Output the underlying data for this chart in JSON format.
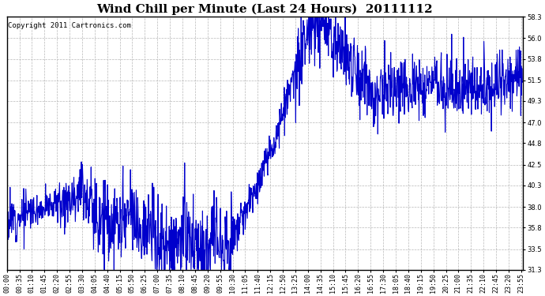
{
  "title": "Wind Chill per Minute (Last 24 Hours)  20111112",
  "copyright": "Copyright 2011 Cartronics.com",
  "ylim": [
    31.3,
    58.3
  ],
  "yticks": [
    31.3,
    33.5,
    35.8,
    38.0,
    40.3,
    42.5,
    44.8,
    47.0,
    49.3,
    51.5,
    53.8,
    56.0,
    58.3
  ],
  "line_color": "#0000cc",
  "bg_color": "#ffffff",
  "grid_color": "#b0b0b0",
  "title_fontsize": 11,
  "copyright_fontsize": 6.5,
  "tick_fontsize": 6,
  "n_minutes": 1440,
  "x_tick_interval": 35,
  "x_tick_labels": [
    "00:00",
    "00:35",
    "01:10",
    "01:45",
    "02:20",
    "02:55",
    "03:30",
    "04:05",
    "04:40",
    "05:15",
    "05:50",
    "06:25",
    "07:00",
    "07:35",
    "08:10",
    "08:45",
    "09:20",
    "09:55",
    "10:30",
    "11:05",
    "11:40",
    "12:15",
    "12:50",
    "13:25",
    "14:00",
    "14:35",
    "15:10",
    "15:45",
    "16:20",
    "16:55",
    "17:30",
    "18:05",
    "18:40",
    "19:15",
    "19:50",
    "20:25",
    "21:00",
    "21:35",
    "22:10",
    "22:45",
    "23:20",
    "23:55"
  ],
  "segments": [
    {
      "t0": 0.0,
      "t1": 0.042,
      "v0": 36.5,
      "v1": 37.5
    },
    {
      "t0": 0.042,
      "t1": 0.104,
      "v0": 37.5,
      "v1": 38.5
    },
    {
      "t0": 0.104,
      "t1": 0.146,
      "v0": 38.5,
      "v1": 40.2
    },
    {
      "t0": 0.146,
      "t1": 0.16,
      "v0": 40.2,
      "v1": 38.5
    },
    {
      "t0": 0.16,
      "t1": 0.208,
      "v0": 38.5,
      "v1": 35.5
    },
    {
      "t0": 0.208,
      "t1": 0.24,
      "v0": 35.5,
      "v1": 36.5
    },
    {
      "t0": 0.24,
      "t1": 0.271,
      "v0": 36.5,
      "v1": 35.8
    },
    {
      "t0": 0.271,
      "t1": 0.313,
      "v0": 35.8,
      "v1": 33.5
    },
    {
      "t0": 0.313,
      "t1": 0.35,
      "v0": 33.5,
      "v1": 35.0
    },
    {
      "t0": 0.35,
      "t1": 0.375,
      "v0": 35.0,
      "v1": 32.5
    },
    {
      "t0": 0.375,
      "t1": 0.406,
      "v0": 32.5,
      "v1": 35.5
    },
    {
      "t0": 0.406,
      "t1": 0.43,
      "v0": 35.5,
      "v1": 33.5
    },
    {
      "t0": 0.43,
      "t1": 0.5,
      "v0": 33.5,
      "v1": 42.0
    },
    {
      "t0": 0.5,
      "t1": 0.56,
      "v0": 42.0,
      "v1": 52.0
    },
    {
      "t0": 0.56,
      "t1": 0.59,
      "v0": 52.0,
      "v1": 57.5
    },
    {
      "t0": 0.59,
      "t1": 0.615,
      "v0": 57.5,
      "v1": 57.0
    },
    {
      "t0": 0.615,
      "t1": 0.64,
      "v0": 57.0,
      "v1": 55.5
    },
    {
      "t0": 0.64,
      "t1": 0.667,
      "v0": 55.5,
      "v1": 53.5
    },
    {
      "t0": 0.667,
      "t1": 0.693,
      "v0": 53.5,
      "v1": 51.5
    },
    {
      "t0": 0.693,
      "t1": 0.715,
      "v0": 51.5,
      "v1": 50.0
    },
    {
      "t0": 0.715,
      "t1": 0.76,
      "v0": 50.0,
      "v1": 50.5
    },
    {
      "t0": 0.76,
      "t1": 0.82,
      "v0": 50.5,
      "v1": 51.5
    },
    {
      "t0": 0.82,
      "t1": 0.87,
      "v0": 51.5,
      "v1": 51.0
    },
    {
      "t0": 0.87,
      "t1": 0.917,
      "v0": 51.0,
      "v1": 50.5
    },
    {
      "t0": 0.917,
      "t1": 0.96,
      "v0": 50.5,
      "v1": 51.5
    },
    {
      "t0": 0.96,
      "t1": 1.0,
      "v0": 51.5,
      "v1": 52.5
    }
  ],
  "noise_regions": [
    {
      "t0": 0.0,
      "t1": 0.05,
      "scale": 1.2
    },
    {
      "t0": 0.05,
      "t1": 0.1,
      "scale": 0.8
    },
    {
      "t0": 0.1,
      "t1": 0.17,
      "scale": 1.5
    },
    {
      "t0": 0.17,
      "t1": 0.44,
      "scale": 2.5
    },
    {
      "t0": 0.44,
      "t1": 0.56,
      "scale": 1.0
    },
    {
      "t0": 0.56,
      "t1": 0.64,
      "scale": 1.8
    },
    {
      "t0": 0.64,
      "t1": 0.7,
      "scale": 2.0
    },
    {
      "t0": 0.7,
      "t1": 1.0,
      "scale": 1.8
    }
  ]
}
